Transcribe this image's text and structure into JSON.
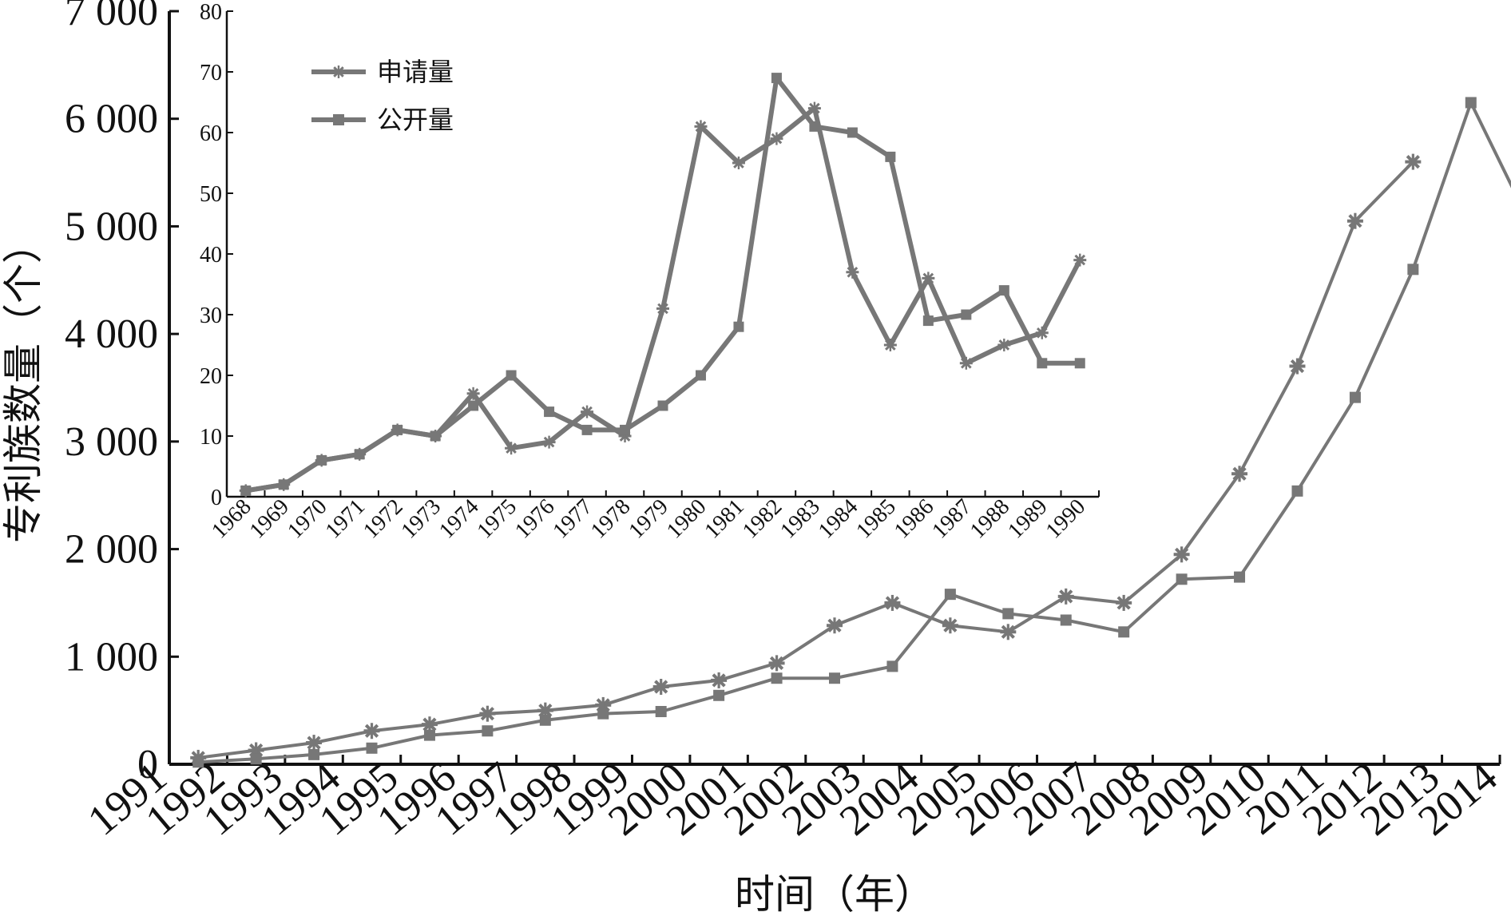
{
  "chart_data": [
    {
      "type": "line",
      "xlabel": "时间（年）",
      "ylabel": "专利族数量（个）",
      "categories": [
        "1991",
        "1992",
        "1993",
        "1994",
        "1995",
        "1996",
        "1997",
        "1998",
        "1999",
        "2000",
        "2001",
        "2002",
        "2003",
        "2004",
        "2005",
        "2006",
        "2007",
        "2008",
        "2009",
        "2010",
        "2011",
        "2012",
        "2013",
        "2014"
      ],
      "ylim": [
        0,
        7000
      ],
      "yticks": [
        "0",
        "1 000",
        "2 000",
        "3 000",
        "4 000",
        "5 000",
        "6 000",
        "7 000"
      ],
      "series": [
        {
          "name": "申请量",
          "marker": "asterisk",
          "color": "#777777",
          "values": [
            60,
            130,
            200,
            310,
            370,
            470,
            500,
            550,
            720,
            780,
            940,
            1290,
            1500,
            1290,
            1230,
            1560,
            1500,
            1950,
            2700,
            3700,
            5050,
            5600,
            null,
            null
          ]
        },
        {
          "name": "公开量",
          "marker": "square",
          "color": "#777777",
          "values": [
            20,
            50,
            90,
            150,
            270,
            310,
            410,
            470,
            490,
            640,
            800,
            800,
            910,
            1580,
            1400,
            1340,
            1230,
            1720,
            1740,
            2540,
            3410,
            4600,
            6150,
            5050
          ]
        }
      ],
      "grid": false
    },
    {
      "type": "line",
      "categories": [
        "1968",
        "1969",
        "1970",
        "1971",
        "1972",
        "1973",
        "1974",
        "1975",
        "1976",
        "1977",
        "1978",
        "1979",
        "1980",
        "1981",
        "1982",
        "1983",
        "1984",
        "1985",
        "1986",
        "1987",
        "1988",
        "1989",
        "1990"
      ],
      "ylim": [
        0,
        80
      ],
      "yticks": [
        "0",
        "10",
        "20",
        "30",
        "40",
        "50",
        "60",
        "70",
        "80"
      ],
      "legend": {
        "position": "top-left"
      },
      "series": [
        {
          "name": "申请量",
          "marker": "asterisk",
          "color": "#777777",
          "values": [
            1,
            2,
            6,
            7,
            11,
            10,
            17,
            8,
            9,
            14,
            10,
            31,
            61,
            55,
            59,
            64,
            37,
            25,
            36,
            22,
            25,
            27,
            39
          ]
        },
        {
          "name": "公开量",
          "marker": "square",
          "color": "#777777",
          "values": [
            1,
            2,
            6,
            7,
            11,
            10,
            15,
            20,
            14,
            11,
            11,
            15,
            20,
            28,
            69,
            61,
            60,
            56,
            29,
            30,
            34,
            22,
            22
          ]
        }
      ],
      "grid": false
    }
  ]
}
